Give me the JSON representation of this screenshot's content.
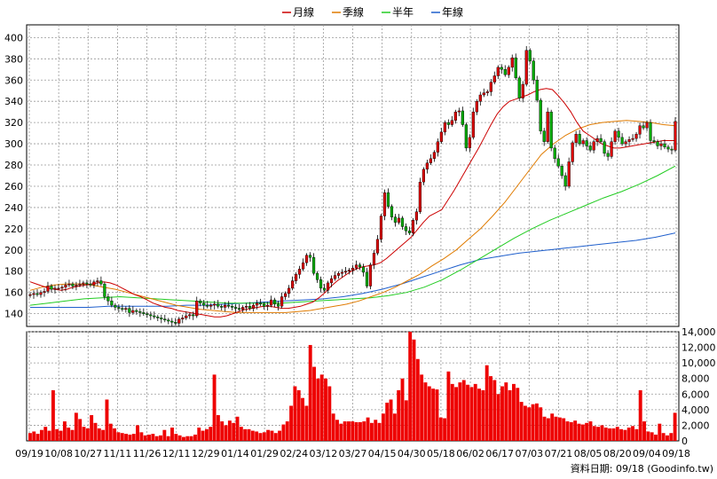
{
  "legend": [
    {
      "label": "月線",
      "color": "#cc0000"
    },
    {
      "label": "季線",
      "color": "#e07b00"
    },
    {
      "label": "半年",
      "color": "#22cc22"
    },
    {
      "label": "年線",
      "color": "#1f5fcc"
    }
  ],
  "footer": "資料日期: 09/18  (Goodinfo.tw)",
  "chart_data": {
    "type": "candlestick",
    "price": {
      "ylim": [
        128,
        412
      ],
      "yticks": [
        140,
        160,
        180,
        200,
        220,
        240,
        260,
        280,
        300,
        320,
        340,
        360,
        380,
        400
      ],
      "grid": true,
      "candle_up_color": "#dd0000",
      "candle_down_color": "#00aa00",
      "candles_close": [
        158,
        159,
        158,
        160,
        161,
        166,
        163,
        164,
        164,
        165,
        167,
        168,
        166,
        167,
        168,
        169,
        168,
        167,
        170,
        171,
        168,
        156,
        152,
        148,
        146,
        145,
        144,
        145,
        141,
        143,
        142,
        141,
        140,
        139,
        138,
        137,
        136,
        135,
        134,
        133,
        132,
        131,
        135,
        136,
        138,
        139,
        138,
        152,
        150,
        148,
        147,
        148,
        149,
        147,
        146,
        148,
        147,
        146,
        145,
        144,
        146,
        147,
        145,
        148,
        150,
        149,
        147,
        148,
        153,
        149,
        147,
        156,
        159,
        164,
        171,
        177,
        182,
        188,
        195,
        193,
        178,
        172,
        164,
        162,
        169,
        173,
        176,
        178,
        179,
        180,
        181,
        183,
        186,
        184,
        179,
        166,
        186,
        197,
        210,
        232,
        254,
        241,
        231,
        226,
        230,
        222,
        218,
        216,
        228,
        236,
        264,
        276,
        282,
        286,
        292,
        302,
        311,
        320,
        318,
        322,
        330,
        331,
        318,
        296,
        306,
        330,
        340,
        346,
        348,
        349,
        358,
        364,
        372,
        370,
        365,
        372,
        381,
        362,
        343,
        356,
        388,
        378,
        360,
        341,
        312,
        302,
        330,
        296,
        286,
        279,
        270,
        260,
        283,
        301,
        309,
        300,
        303,
        298,
        294,
        302,
        305,
        302,
        291,
        288,
        302,
        312,
        306,
        300,
        302,
        304,
        305,
        309,
        317,
        315,
        320,
        303,
        302,
        298,
        300,
        297,
        295,
        294,
        321
      ],
      "ma_monthly": [
        170,
        168,
        166,
        164,
        163,
        162,
        163,
        165,
        166,
        167,
        168,
        169,
        170,
        169,
        167,
        164,
        161,
        158,
        156,
        153,
        150,
        148,
        146,
        145,
        143,
        142,
        141,
        140,
        139,
        138,
        137,
        137,
        138,
        140,
        142,
        144,
        145,
        146,
        147,
        147,
        146,
        145,
        145,
        146,
        147,
        149,
        151,
        155,
        160,
        166,
        171,
        175,
        179,
        182,
        184,
        185,
        186,
        188,
        192,
        197,
        202,
        207,
        212,
        219,
        226,
        232,
        235,
        238,
        247,
        256,
        266,
        276,
        286,
        296,
        307,
        318,
        328,
        335,
        340,
        342,
        344,
        346,
        349,
        351,
        352,
        351,
        345,
        338,
        330,
        320,
        312,
        308,
        304,
        300,
        298,
        296,
        296,
        297,
        298,
        299,
        300,
        301,
        302,
        303,
        303,
        303
      ],
      "ma_quarter": [
        162,
        165,
        167,
        168,
        168,
        167,
        165,
        163,
        160,
        157,
        154,
        151,
        148,
        146,
        144,
        143,
        142,
        141,
        141,
        141,
        141,
        141,
        142,
        143,
        145,
        147,
        149,
        152,
        156,
        160,
        165,
        171,
        177,
        185,
        192,
        200,
        210,
        220,
        232,
        245,
        260,
        275,
        290,
        300,
        308,
        314,
        318,
        320,
        321,
        322,
        321,
        320,
        318,
        317
      ],
      "ma_half": [
        148,
        150,
        152,
        154,
        155,
        156,
        155,
        154,
        153,
        152,
        151,
        150,
        150,
        150,
        150,
        151,
        152,
        153,
        154,
        155,
        157,
        160,
        165,
        172,
        181,
        191,
        201,
        211,
        220,
        228,
        235,
        242,
        249,
        255,
        262,
        270,
        279
      ],
      "ma_year": [
        146,
        146,
        146,
        146,
        147,
        147,
        147,
        147,
        148,
        148,
        149,
        150,
        151,
        152,
        153,
        154,
        156,
        159,
        163,
        168,
        174,
        180,
        186,
        191,
        194,
        197,
        199,
        201,
        203,
        205,
        207,
        209,
        212,
        216
      ]
    },
    "volume": {
      "ylim": [
        0,
        14000
      ],
      "yticks": [
        2000,
        4000,
        6000,
        8000,
        10000,
        12000,
        14000
      ],
      "color": "#ee0000",
      "values": [
        1000,
        1200,
        900,
        1400,
        1800,
        1300,
        6500,
        1500,
        1300,
        2500,
        1700,
        1400,
        3600,
        2800,
        1800,
        1600,
        3300,
        2300,
        1600,
        1400,
        5300,
        2200,
        1600,
        1100,
        1000,
        900,
        800,
        900,
        2000,
        1100,
        700,
        800,
        900,
        600,
        700,
        1400,
        600,
        1700,
        900,
        700,
        500,
        600,
        600,
        800,
        1700,
        1300,
        1500,
        1800,
        8500,
        3300,
        2500,
        2000,
        2600,
        2300,
        3100,
        1800,
        1500,
        1500,
        1300,
        1200,
        1000,
        1100,
        1400,
        1300,
        1000,
        1300,
        2100,
        2500,
        4500,
        7000,
        6500,
        5500,
        4500,
        12300,
        9500,
        8000,
        8500,
        8000,
        7000,
        3500,
        2700,
        2200,
        2500,
        2500,
        2500,
        2400,
        2400,
        2500,
        3000,
        2300,
        2700,
        2300,
        3500,
        4900,
        5300,
        3500,
        6500,
        8000,
        5200,
        14000,
        13000,
        10500,
        8500,
        7500,
        7000,
        6700,
        6600,
        3000,
        2900,
        8900,
        7300,
        6900,
        7500,
        7800,
        7200,
        6900,
        7300,
        6700,
        6500,
        9700,
        8300,
        7800,
        6000,
        7000,
        7500,
        6500,
        7300,
        6800,
        5000,
        4500,
        4300,
        4700,
        4800,
        4300,
        3100,
        2900,
        3500,
        3100,
        3000,
        2900,
        2500,
        2400,
        2600,
        2200,
        2100,
        2300,
        2500,
        1900,
        1800,
        2000,
        1700,
        1600,
        1600,
        1800,
        1500,
        1400,
        1700,
        1900,
        1500,
        6500,
        2500,
        1200,
        1100,
        800,
        2200,
        1000,
        700,
        1000,
        3600
      ]
    },
    "x_tick_labels": [
      "09/19",
      "10/08",
      "10/27",
      "11/11",
      "11/26",
      "12/11",
      "12/29",
      "01/14",
      "01/29",
      "02/24",
      "03/12",
      "03/27",
      "04/15",
      "04/30",
      "05/18",
      "06/02",
      "06/17",
      "07/03",
      "07/21",
      "08/05",
      "08/20",
      "09/04",
      "09/18"
    ]
  }
}
